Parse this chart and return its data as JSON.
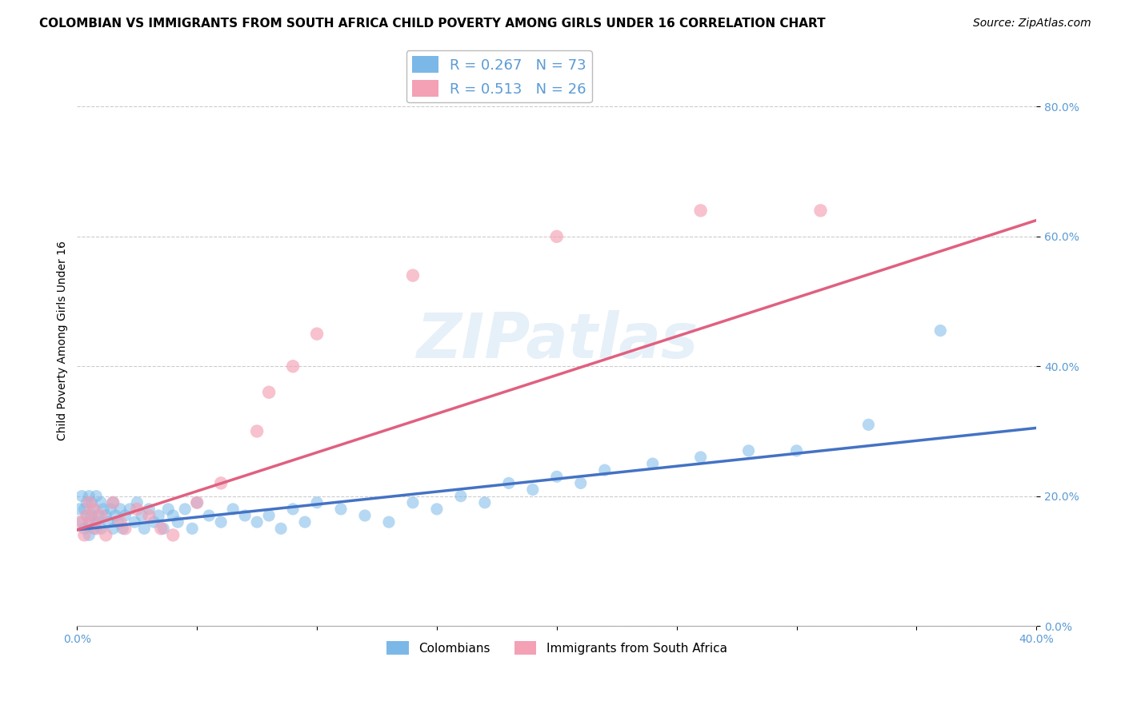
{
  "title": "COLOMBIAN VS IMMIGRANTS FROM SOUTH AFRICA CHILD POVERTY AMONG GIRLS UNDER 16 CORRELATION CHART",
  "source": "Source: ZipAtlas.com",
  "ylabel": "Child Poverty Among Girls Under 16",
  "xlim": [
    0.0,
    0.4
  ],
  "ylim": [
    0.0,
    0.88
  ],
  "xtick_positions": [
    0.0,
    0.05,
    0.1,
    0.15,
    0.2,
    0.25,
    0.3,
    0.35,
    0.4
  ],
  "ytick_vals": [
    0.0,
    0.2,
    0.4,
    0.6,
    0.8
  ],
  "ytick_labels": [
    "0.0%",
    "20.0%",
    "40.0%",
    "60.0%",
    "80.0%"
  ],
  "watermark": "ZIPatlas",
  "legend_r1": "R = 0.267",
  "legend_n1": "N = 73",
  "legend_r2": "R = 0.513",
  "legend_n2": "N = 26",
  "color_blue": "#7bb8e8",
  "color_pink": "#f4a0b5",
  "line_blue": "#4472c4",
  "line_pink": "#e06080",
  "blue_line_x": [
    0.0,
    0.4
  ],
  "blue_line_y": [
    0.148,
    0.305
  ],
  "pink_line_x": [
    0.0,
    0.4
  ],
  "pink_line_y": [
    0.148,
    0.625
  ],
  "blue_scatter_x": [
    0.001,
    0.002,
    0.002,
    0.003,
    0.003,
    0.004,
    0.004,
    0.005,
    0.005,
    0.005,
    0.006,
    0.006,
    0.007,
    0.007,
    0.008,
    0.008,
    0.009,
    0.01,
    0.01,
    0.011,
    0.012,
    0.013,
    0.014,
    0.015,
    0.015,
    0.016,
    0.017,
    0.018,
    0.019,
    0.02,
    0.022,
    0.024,
    0.025,
    0.027,
    0.028,
    0.03,
    0.032,
    0.034,
    0.036,
    0.038,
    0.04,
    0.042,
    0.045,
    0.048,
    0.05,
    0.055,
    0.06,
    0.065,
    0.07,
    0.075,
    0.08,
    0.085,
    0.09,
    0.095,
    0.1,
    0.11,
    0.12,
    0.13,
    0.14,
    0.15,
    0.16,
    0.17,
    0.18,
    0.19,
    0.2,
    0.21,
    0.22,
    0.24,
    0.26,
    0.28,
    0.3,
    0.33,
    0.36
  ],
  "blue_scatter_y": [
    0.18,
    0.16,
    0.2,
    0.15,
    0.18,
    0.17,
    0.19,
    0.14,
    0.16,
    0.2,
    0.17,
    0.19,
    0.15,
    0.18,
    0.16,
    0.2,
    0.17,
    0.15,
    0.19,
    0.18,
    0.17,
    0.16,
    0.18,
    0.15,
    0.19,
    0.17,
    0.16,
    0.18,
    0.15,
    0.17,
    0.18,
    0.16,
    0.19,
    0.17,
    0.15,
    0.18,
    0.16,
    0.17,
    0.15,
    0.18,
    0.17,
    0.16,
    0.18,
    0.15,
    0.19,
    0.17,
    0.16,
    0.18,
    0.17,
    0.16,
    0.17,
    0.15,
    0.18,
    0.16,
    0.19,
    0.18,
    0.17,
    0.16,
    0.19,
    0.18,
    0.2,
    0.19,
    0.22,
    0.21,
    0.23,
    0.22,
    0.24,
    0.25,
    0.26,
    0.27,
    0.27,
    0.31,
    0.455
  ],
  "pink_scatter_x": [
    0.001,
    0.003,
    0.004,
    0.005,
    0.006,
    0.007,
    0.008,
    0.01,
    0.012,
    0.015,
    0.018,
    0.02,
    0.025,
    0.03,
    0.035,
    0.04,
    0.05,
    0.06,
    0.075,
    0.08,
    0.09,
    0.1,
    0.14,
    0.2,
    0.26,
    0.31
  ],
  "pink_scatter_y": [
    0.16,
    0.14,
    0.17,
    0.19,
    0.16,
    0.18,
    0.15,
    0.17,
    0.14,
    0.19,
    0.16,
    0.15,
    0.18,
    0.17,
    0.15,
    0.14,
    0.19,
    0.22,
    0.3,
    0.36,
    0.4,
    0.45,
    0.54,
    0.6,
    0.64,
    0.64
  ],
  "title_fontsize": 11,
  "axis_label_fontsize": 10,
  "tick_fontsize": 10,
  "source_fontsize": 10,
  "background_color": "#ffffff",
  "grid_color": "#cccccc",
  "tick_color": "#5b9bd5"
}
